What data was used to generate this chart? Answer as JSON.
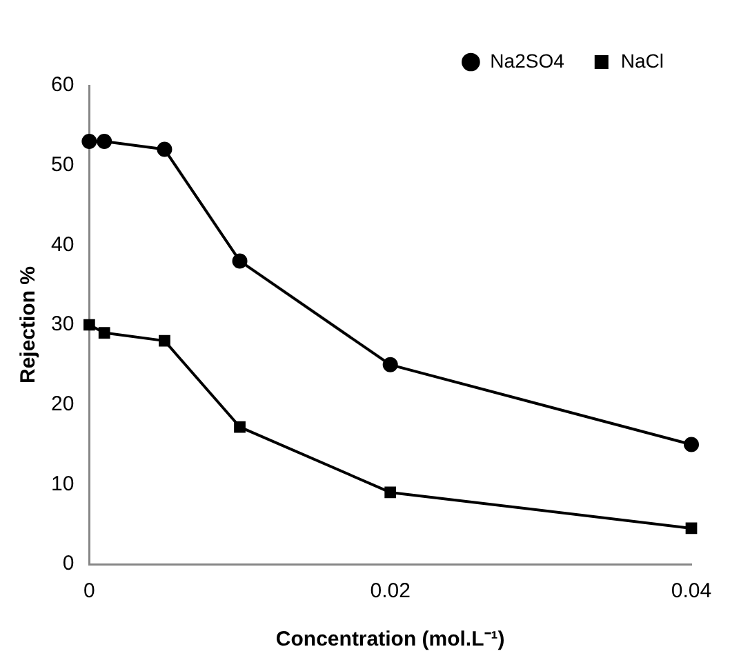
{
  "chart_data": {
    "type": "line",
    "xlabel": "Concentration (mol.L⁻¹)",
    "ylabel": "Rejection %",
    "x": [
      0,
      0.001,
      0.005,
      0.01,
      0.02,
      0.04
    ],
    "series": [
      {
        "name": "Na2SO4",
        "color": "#000000",
        "marker": "circle",
        "values": [
          53,
          53,
          52,
          38,
          25,
          15
        ]
      },
      {
        "name": "NaCl",
        "color": "#000000",
        "marker": "square",
        "values": [
          30,
          29,
          28,
          17.2,
          9,
          4.5
        ]
      }
    ],
    "xlim": [
      0,
      0.04
    ],
    "xticks": [
      0,
      0.02,
      0.04
    ],
    "ylim": [
      0,
      60
    ],
    "yticks": [
      0,
      10,
      20,
      30,
      40,
      50,
      60
    ],
    "grid": false,
    "legend": "top right",
    "line_style": "solid"
  }
}
